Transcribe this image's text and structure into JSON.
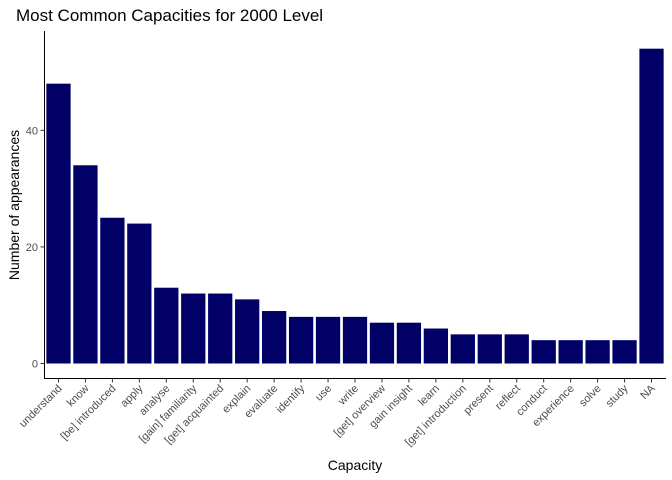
{
  "chart_data": {
    "type": "bar",
    "title": "Most Common Capacities for 2000 Level",
    "xlabel": "Capacity",
    "ylabel": "Number of appearances",
    "categories": [
      "understand",
      "know",
      "[be] introduced",
      "apply",
      "analyse",
      "[gain] familiarity",
      "[get] acquainted",
      "explain",
      "evaluate",
      "identify",
      "use",
      "write",
      "[get] overview",
      "gain insight",
      "learn",
      "[get] introduction",
      "present",
      "reflect",
      "conduct",
      "experience",
      "solve",
      "study",
      "NA"
    ],
    "values": [
      48,
      34,
      25,
      24,
      13,
      12,
      12,
      11,
      9,
      8,
      8,
      8,
      7,
      7,
      6,
      5,
      5,
      5,
      4,
      4,
      4,
      4,
      54
    ],
    "yticks": [
      0,
      20,
      40
    ],
    "ylim": [
      0,
      56.7
    ],
    "bar_color": "#000066",
    "grid": false,
    "legend": "none"
  }
}
